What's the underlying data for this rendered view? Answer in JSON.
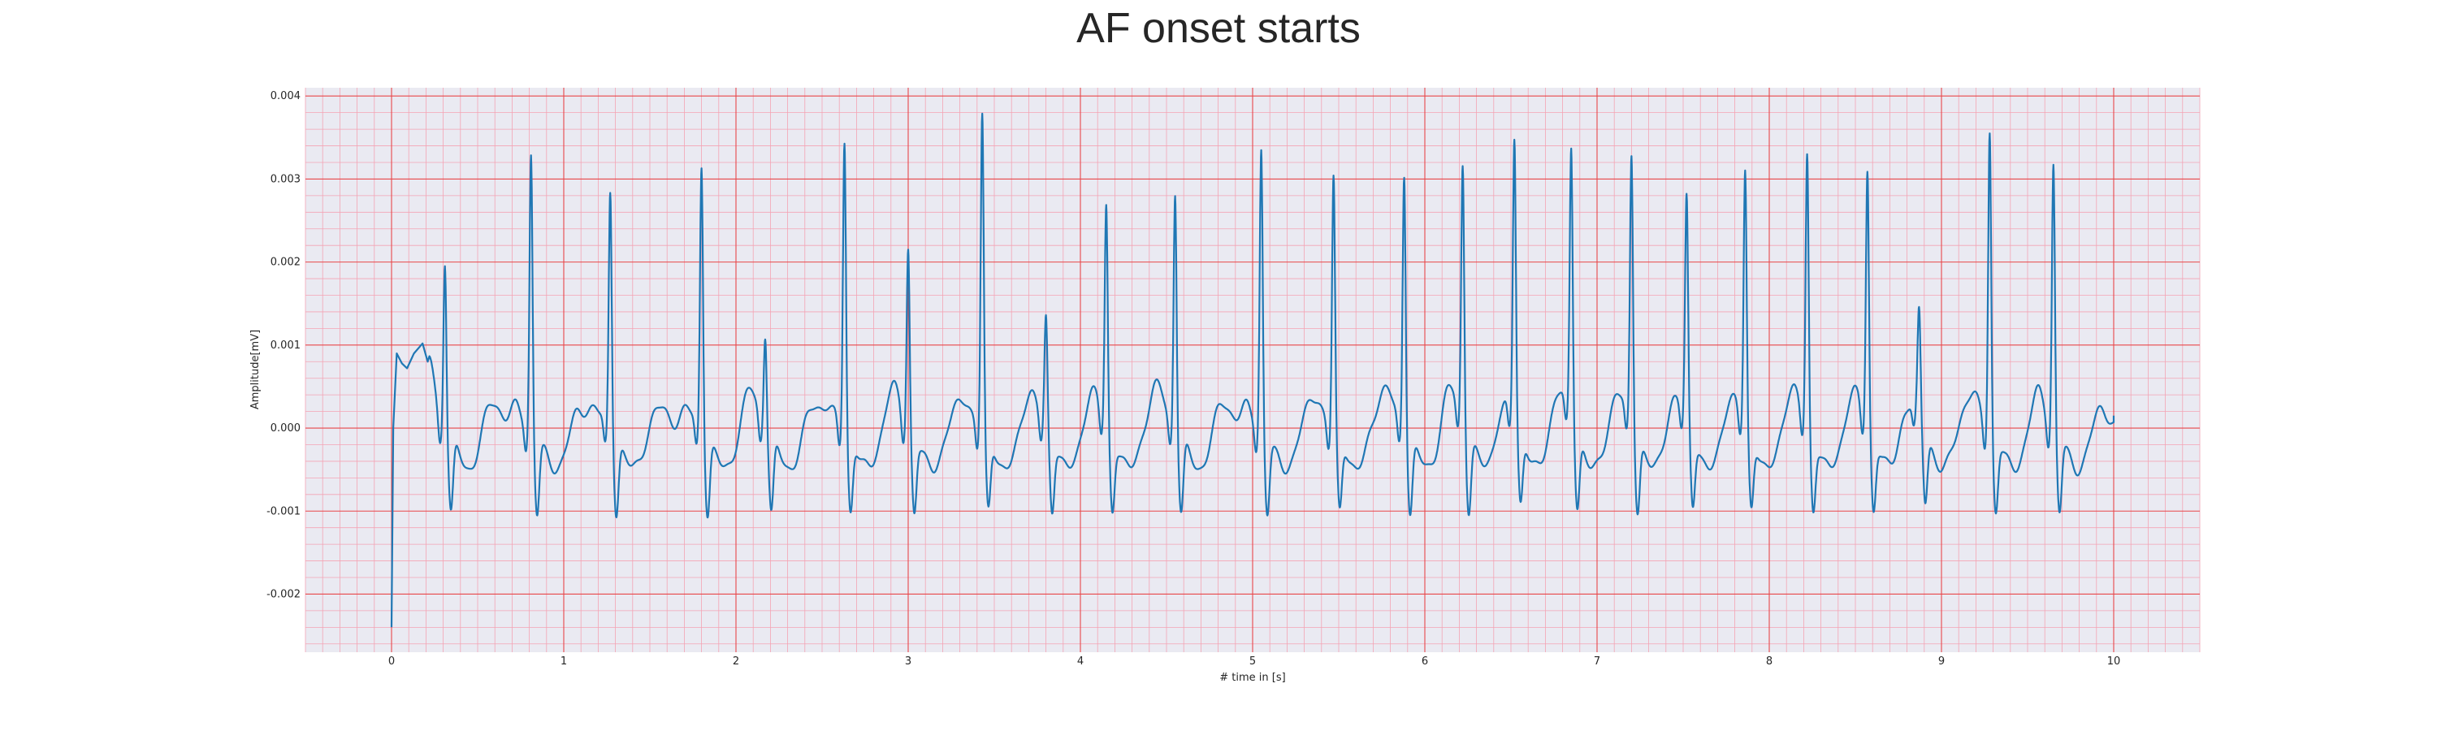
{
  "chart_data": {
    "type": "line",
    "title": "AF onset starts",
    "xlabel": "# time in [s]",
    "ylabel": "Amplitude[mV]",
    "xlim": [
      -0.5,
      10.5
    ],
    "ylim": [
      -0.0027,
      0.0041
    ],
    "xticks": [
      0,
      1,
      2,
      3,
      4,
      5,
      6,
      7,
      8,
      9,
      10
    ],
    "xtick_labels": [
      "0",
      "1",
      "2",
      "3",
      "4",
      "5",
      "6",
      "7",
      "8",
      "9",
      "10"
    ],
    "yticks": [
      -0.002,
      -0.001,
      0.0,
      0.001,
      0.002,
      0.003,
      0.004
    ],
    "ytick_labels": [
      "-0.002",
      "-0.001",
      "0.000",
      "0.001",
      "0.002",
      "0.003",
      "0.004"
    ],
    "grid": true,
    "minor_grid": true,
    "colors": {
      "background": "#eaeaf2",
      "major_grid": "#e8474a",
      "minor_grid": "#f4a3b4",
      "line": "#1f77b4"
    },
    "series": [
      {
        "color": "#1f77b4",
        "start_point": [
          0.0,
          -0.0024
        ],
        "r_peaks": [
          [
            0.31,
            0.00208
          ],
          [
            0.81,
            0.00335
          ],
          [
            1.27,
            0.00288
          ],
          [
            1.8,
            0.00321
          ],
          [
            2.17,
            0.00117
          ],
          [
            2.63,
            0.0035
          ],
          [
            3.0,
            0.00219
          ],
          [
            3.43,
            0.00381
          ],
          [
            3.8,
            0.00132
          ],
          [
            4.15,
            0.00263
          ],
          [
            4.55,
            0.0029
          ],
          [
            5.05,
            0.00341
          ],
          [
            5.47,
            0.00305
          ],
          [
            5.88,
            0.00312
          ],
          [
            6.22,
            0.00311
          ],
          [
            6.52,
            0.00332
          ],
          [
            6.85,
            0.00323
          ],
          [
            7.2,
            0.00323
          ],
          [
            7.52,
            0.00262
          ],
          [
            7.86,
            0.00302
          ],
          [
            8.22,
            0.00325
          ],
          [
            8.57,
            0.00305
          ],
          [
            8.87,
            0.0012
          ],
          [
            9.28,
            0.00363
          ],
          [
            9.65,
            0.0032
          ]
        ],
        "end_point": [
          10.0,
          0.00015
        ]
      }
    ]
  }
}
